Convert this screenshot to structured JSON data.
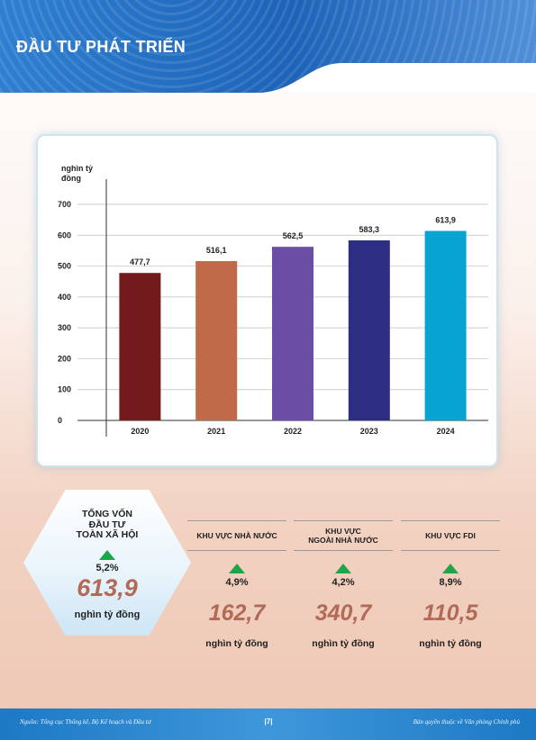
{
  "header": {
    "title": "ĐẦU TƯ PHÁT TRIỂN"
  },
  "chart_data": {
    "type": "bar",
    "categories": [
      "2020",
      "2021",
      "2022",
      "2023",
      "2024"
    ],
    "values": [
      477.7,
      516.1,
      562.5,
      583.3,
      613.9
    ],
    "value_labels": [
      "477,7",
      "516,1",
      "562,5",
      "583,3",
      "613,9"
    ],
    "colors": [
      "#731a1d",
      "#c06a4a",
      "#6a4ea6",
      "#2d2d82",
      "#05a4d2"
    ],
    "ylabel": "nghìn tỷ đồng",
    "ylabel_lines": [
      "nghìn tỷ",
      "đồng"
    ],
    "yticks": [
      "0",
      "100",
      "200",
      "300",
      "400",
      "500",
      "600",
      "700"
    ],
    "ylim": [
      0,
      700
    ],
    "grid": true
  },
  "total": {
    "title_lines": [
      "TỔNG VỐN",
      "ĐẦU TƯ",
      "TOÀN XÃ HỘI"
    ],
    "growth": "5,2%",
    "value": "613,9",
    "unit": "nghìn tỷ đồng"
  },
  "sectors": [
    {
      "title_lines": [
        "KHU VỰC NHÀ NƯỚC"
      ],
      "growth": "4,9%",
      "value": "162,7",
      "unit": "nghìn tỷ đồng"
    },
    {
      "title_lines": [
        "KHU VỰC",
        "NGOÀI NHÀ NƯỚC"
      ],
      "growth": "4,2%",
      "value": "340,7",
      "unit": "nghìn tỷ đồng"
    },
    {
      "title_lines": [
        "KHU VỰC FDI"
      ],
      "growth": "8,9%",
      "value": "110,5",
      "unit": "nghìn tỷ đồng"
    }
  ],
  "colors": {
    "growth_arrow": "#1ea44a",
    "value_text": "#b26a57",
    "header_blue": "#1d63b8"
  },
  "footer": {
    "source": "Nguồn: Tổng cục Thống kê, Bộ Kế hoạch và Đầu tư",
    "page": "|7|",
    "copyright": "Bản quyền thuộc về Văn phòng Chính phủ"
  }
}
